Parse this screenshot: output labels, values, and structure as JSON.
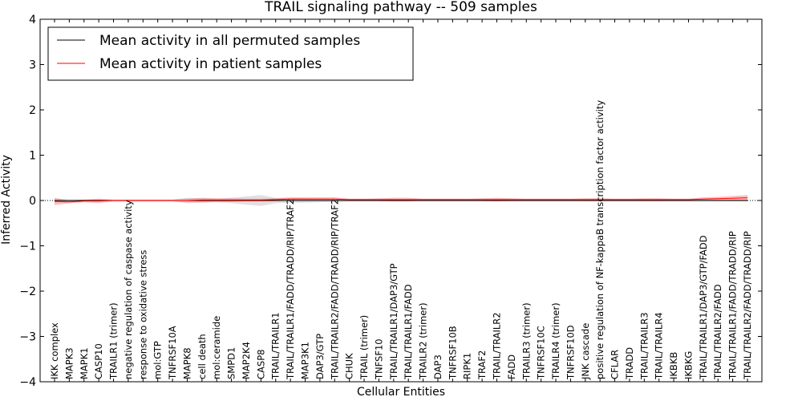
{
  "chart_data": {
    "type": "line",
    "title": "TRAIL signaling pathway -- 509 samples",
    "xlabel": "Cellular Entities",
    "ylabel": "Inferred Activity",
    "ylim": [
      -4,
      4
    ],
    "yticks": [
      "−4",
      "−3",
      "−2",
      "−1",
      "0",
      "1",
      "2",
      "3",
      "4"
    ],
    "grid": false,
    "legend_position": "top-left",
    "baseline_dotted_at": 0,
    "categories": [
      "IKK complex",
      "MAPK3",
      "MAPK1",
      "CASP10",
      "TRAILR1 (trimer)",
      "negative regulation of caspase activity",
      "response to oxidative stress",
      "mol:GTP",
      "TNFRSF10A",
      "MAPK8",
      "cell death",
      "mol:ceramide",
      "SMPD1",
      "MAP2K4",
      "CASP8",
      "TRAIL/TRAILR1",
      "TRAIL/TRAILR1/FADD/TRADD/RIP/TRAF2",
      "MAP3K1",
      "DAP3/GTP",
      "TRAIL/TRAILR2/FADD/TRADD/RIP/TRAF2",
      "CHUK",
      "TRAIL (trimer)",
      "TNFSF10",
      "TRAIL/TRAILR1/DAP3/GTP",
      "TRAIL/TRAILR1/FADD",
      "TRAILR2 (trimer)",
      "DAP3",
      "TNFRSF10B",
      "RIPK1",
      "TRAF2",
      "TRAIL/TRAILR2",
      "FADD",
      "TRAILR3 (trimer)",
      "TNFRSF10C",
      "TRAILR4 (trimer)",
      "TNFRSF10D",
      "JNK cascade",
      "positive regulation of NF-kappaB transcription factor activity",
      "CFLAR",
      "TRADD",
      "TRAIL/TRAILR3",
      "TRAIL/TRAILR4",
      "IKBKB",
      "IKBKG",
      "TRAIL/TRAILR1/DAP3/GTP/FADD",
      "TRAIL/TRAILR2/FADD",
      "TRAIL/TRAILR1/FADD/TRADD/RIP",
      "TRAIL/TRAILR2/FADD/TRADD/RIP"
    ],
    "series": [
      {
        "name": "Mean activity in all permuted samples",
        "color": "#000000",
        "band_color": "#999999",
        "values": [
          0,
          0,
          0,
          0,
          0,
          0,
          0,
          0,
          0,
          0,
          0,
          0,
          0,
          0,
          0,
          0,
          0,
          0,
          0,
          0,
          0,
          0,
          0,
          0,
          0,
          0,
          0,
          0,
          0,
          0,
          0,
          0,
          0,
          0,
          0,
          0,
          0,
          0,
          0,
          0,
          0,
          0,
          0,
          0,
          0,
          0,
          0,
          0
        ],
        "band": [
          0.03,
          0.02,
          0.02,
          0.02,
          0.02,
          0.02,
          0.02,
          0.02,
          0.02,
          0.06,
          0.05,
          0.04,
          0.06,
          0.09,
          0.12,
          0.06,
          0.05,
          0.05,
          0.04,
          0.03,
          0.02,
          0.02,
          0.02,
          0.02,
          0.02,
          0.02,
          0.02,
          0.02,
          0.02,
          0.02,
          0.02,
          0.02,
          0.02,
          0.02,
          0.02,
          0.02,
          0.02,
          0.02,
          0.02,
          0.02,
          0.02,
          0.02,
          0.02,
          0.02,
          0.02,
          0.02,
          0.02,
          0.02
        ]
      },
      {
        "name": "Mean activity in patient samples",
        "color": "#ff0000",
        "band_color": "#ff4444",
        "values": [
          -0.02,
          -0.03,
          -0.01,
          -0.01,
          0,
          0,
          0,
          0,
          0,
          0,
          0.01,
          0.01,
          0.01,
          0.01,
          0.01,
          0.02,
          0.03,
          0.03,
          0.03,
          0.03,
          0.02,
          0.02,
          0.02,
          0.02,
          0.02,
          0.02,
          0.02,
          0.02,
          0.02,
          0.02,
          0.02,
          0.02,
          0.02,
          0.02,
          0.02,
          0.02,
          0.02,
          0.02,
          0.02,
          0.02,
          0.02,
          0.02,
          0.02,
          0.02,
          0.03,
          0.04,
          0.05,
          0.06
        ],
        "band": [
          0.08,
          0.03,
          0.03,
          0.05,
          0.02,
          0.02,
          0.02,
          0.02,
          0.02,
          0.04,
          0.05,
          0.04,
          0.04,
          0.03,
          0.03,
          0.03,
          0.04,
          0.04,
          0.04,
          0.04,
          0.02,
          0.02,
          0.03,
          0.04,
          0.04,
          0.02,
          0.02,
          0.02,
          0.02,
          0.03,
          0.04,
          0.03,
          0.02,
          0.02,
          0.02,
          0.02,
          0.03,
          0.03,
          0.02,
          0.02,
          0.03,
          0.03,
          0.02,
          0.02,
          0.04,
          0.04,
          0.05,
          0.06
        ]
      }
    ]
  }
}
